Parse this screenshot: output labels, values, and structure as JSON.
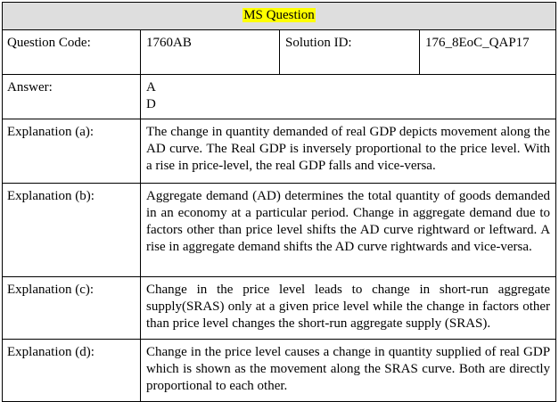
{
  "title": "MS Question",
  "highlight_color": "#ffff00",
  "header_bg": "#dedede",
  "meta": {
    "question_code_label": "Question Code:",
    "question_code_value": "1760AB",
    "solution_id_label": "Solution ID:",
    "solution_id_value": "176_8EoC_QAP17"
  },
  "answer": {
    "label": "Answer:",
    "lines": [
      "A",
      "D"
    ]
  },
  "explanations": [
    {
      "label": "Explanation (a):",
      "text": "The change in quantity demanded of real GDP depicts movement along the AD curve. The Real GDP is inversely proportional to the price level. With a rise in price-level, the real GDP falls and vice-versa."
    },
    {
      "label": "Explanation (b):",
      "text": "Aggregate demand (AD) determines the total quantity of goods demanded in an economy at a particular period. Change in aggregate demand due to factors other than price level shifts the AD curve rightward or leftward.  A rise in aggregate demand shifts the AD curve rightwards and vice-versa."
    },
    {
      "label": "Explanation (c):",
      "text": "Change in the price level leads to change in short-run aggregate supply(SRAS) only at a given price level while the change in factors other than price level changes the short-run aggregate supply (SRAS)."
    },
    {
      "label": "Explanation (d):",
      "text": "Change in the price level causes a change in quantity supplied of real GDP which is shown as the movement along the SRAS curve. Both are directly proportional to each other."
    }
  ]
}
